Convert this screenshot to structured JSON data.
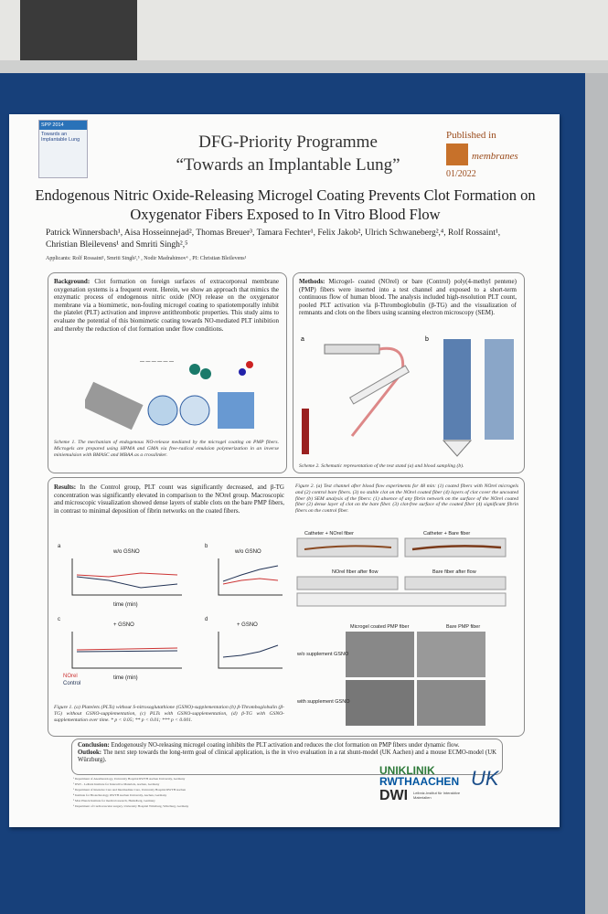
{
  "header": {
    "spp_logo": {
      "code": "SPP 2014",
      "name": "Towards an Implantable Lung"
    },
    "programme": "DFG-Priority Programme",
    "subtitle": "“Towards an Implantable Lung”",
    "published": "Published in",
    "journal": "membranes",
    "issue": "01/2022"
  },
  "title": "Endogenous Nitric Oxide-Releasing Microgel Coating Prevents Clot Formation on Oxygenator Fibers Exposed to In Vitro Blood Flow",
  "authors": "Patrick Winnersbach¹, Aisa Hosseinnejad², Thomas Breuer³, Tamara Fechter¹, Felix Jakob², Ulrich Schwaneberg²,⁴, Rolf Rossaint¹, Christian Bleilevens¹ and Smriti Singh²,⁵",
  "applicants": "Applicants: Rolf Rossaint¹, Smriti Singh²,⁵ , Nodir Madrahimov⁶ , PI: Christian Bleilevens¹",
  "background": {
    "heading": "Background:",
    "text": "Clot formation on foreign surfaces of extracorporeal membrane oxygenation systems is a frequent event. Herein, we show an approach that mimics the enzymatic process of endogenous nitric oxide (NO) release on the oxygenator membrane via a biomimetic, non-fouling microgel coating to spatiotemporally inhibit the platelet (PLT) activation and improve antithrombotic properties. This study aims to evaluate the potential of this biomimetic coating towards NO-mediated PLT inhibition and thereby the reduction of clot formation under flow conditions.",
    "scheme": "Scheme 1. The mechanism of endogenous NO-release mediated by the microgel coating on PMP fibers. Microgels are prepared using HPMA and GMA via free-radical emulsion polymerization in an inverse miniemulsion with BMASC and MBAA as a crosslinker."
  },
  "methods": {
    "heading": "Methods:",
    "text": "Microgel- coated (NOrel) or bare (Control) poly(4-methyl pentene) (PMP) fibers were inserted into a test channel and exposed to a short-term continuous flow of human blood. The analysis included high-resolution PLT count, pooled PLT activation via β-Thromboglobulin (β-TG) and the visualization of remnants and clots on the fibers using scanning electron microscopy (SEM).",
    "scheme": "Scheme 2. Schematic representation of the test stand (a) and blood sampling (b)."
  },
  "results": {
    "heading": "Results:",
    "text": "In the Control group, PLT count was significantly decreased, and β-TG concentration was significantly elevated in comparison to the NOrel group. Macroscopic and microscopic visualization showed dense layers of stable clots on the bare PMP fibers, in contrast to minimal deposition of fibrin networks on the coated fibers.",
    "figure1": "Figure 1. (a) Platelets (PLTs) without S-nitrosoglutathione (GSNO)-supplementation (b) β-Thromboglobulin (β-TG) without GSNO-supplementation, (c) PLTs with GSNO-supplementation, (d) β-TG with GSNO-supplementation over time. * p < 0.05; ** p < 0.01; *** p < 0.001.",
    "figure2": "Figure 2. (a) Test channel after blood flow experiments for 48 min: (1) coated fibers with NOrel microgels and (2) control bare fibers. (3) no stable clot on the NOrel coated fiber (4) layers of clot cover the uncoated fiber (b) SEM analysis of the fibers: (1) absence of any fibrin network on the surface of the NOrel coated fiber (2) dense layer of clot on the bare fiber. (3) clot-free surface of the coated fiber (4) significant fibrin fibers on the control fiber."
  },
  "figure_labels": {
    "wo_gsno": "w/o GSNO",
    "plus_gsno": "+ GSNO",
    "time": "time (min)",
    "norel": "NOrel",
    "control": "Control",
    "cath_norel": "Catheter + NOrel fiber",
    "cath_bare": "Catheter + Bare fiber",
    "norel_after": "NOrel fiber after flow",
    "bare_after": "Bare fiber after flow",
    "coated_pmp": "Microgel coated PMP fiber",
    "bare_pmp": "Bare PMP fiber",
    "wo_supp": "w/o supplement GSNO",
    "with_supp": "with supplement GSNO"
  },
  "conclusion": {
    "heading": "Conclusion:",
    "text": "Endogenously NO-releasing microgel coating inhibits the PLT activation and reduces the clot formation on PMP fibers under dynamic flow.",
    "outlook_heading": "Outlook:",
    "outlook": "The next step towards the long-term goal of clinical application, is the in vivo evaluation in a rat shunt-model (UK Aachen) and a mouse ECMO-model (UK Würzburg)."
  },
  "affiliations": [
    "¹ Department of Anesthesiology, University Hospital RWTH Aachen University, Germany",
    "² DWI – Leibniz Institute for Interactive Materials, Aachen, Germany",
    "³ Department of Intensive Care and Intermediate Care, University Hospital RWTH Aachen",
    "⁴ Institute for Biotechnology, RWTH Aachen University, Aachen, Germany",
    "⁵ Max Planck Institute for medical research, Heidelberg, Germany",
    "⁶ Department of Cardiovascular surgery, University Hospital Würzburg, Würzburg, Germany"
  ],
  "logos": {
    "uniklinik": "UNIKLINIK",
    "rwth": "RWTHAACHEN",
    "dwi": "DWI",
    "dwi_name": "Leibniz-Institut für Interaktive Materialien",
    "ukw": "UK"
  }
}
